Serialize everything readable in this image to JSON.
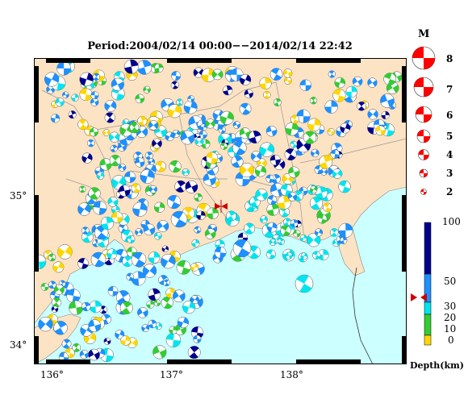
{
  "title": "Period:2004/02/14 00:00−−2014/02/14 22:42",
  "axes": {
    "x_ticks": [
      "136°",
      "137°",
      "138°"
    ],
    "y_ticks": [
      "35°",
      "34°"
    ]
  },
  "magnitude_legend": {
    "title": "M",
    "levels": [
      "8",
      "7",
      "6",
      "5",
      "4",
      "3",
      "2"
    ]
  },
  "depth_legend": {
    "title": "Depth(km)",
    "ticks": [
      "100",
      "50",
      "30",
      "20",
      "10",
      "0"
    ],
    "colors": [
      "#00008b",
      "#1e90ff",
      "#00e5ee",
      "#33cc33",
      "#ffd700"
    ]
  },
  "colors": {
    "land": "#fce3c4",
    "sea": "#ccffff",
    "epicenter_marker": "#cc0000"
  }
}
